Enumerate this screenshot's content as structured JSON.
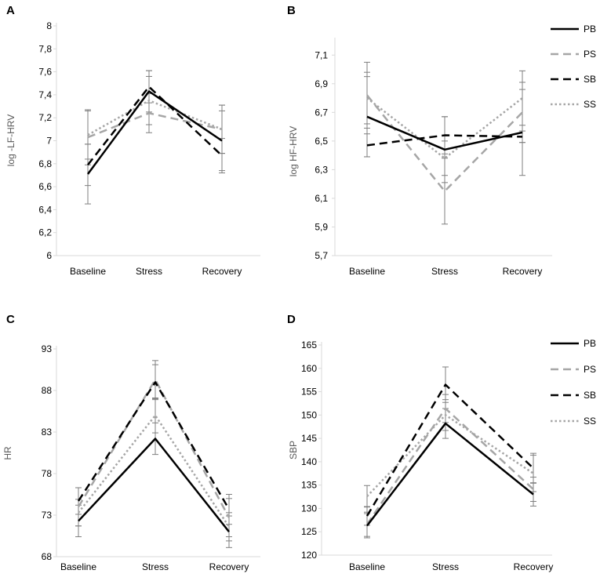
{
  "chart_data": [
    {
      "panel": "A",
      "type": "line",
      "title": "",
      "xlabel": "",
      "ylabel": "log -LF-HRV",
      "categories": [
        "Baseline",
        "Stress",
        "Recovery"
      ],
      "ylim": [
        6,
        8
      ],
      "yticks": [
        "6",
        "6,2",
        "6,4",
        "6,6",
        "6,8",
        "7",
        "7,2",
        "7,4",
        "7,6",
        "7,8",
        "8"
      ],
      "ytick_values": [
        6,
        6.2,
        6.4,
        6.6,
        6.8,
        7,
        7.2,
        7.4,
        7.6,
        7.8,
        8
      ],
      "legend": "none",
      "series": [
        {
          "name": "PB",
          "values": [
            6.71,
            7.43,
            7.0
          ],
          "errors": [
            0.26,
            0.18,
            0.26
          ]
        },
        {
          "name": "PS",
          "values": [
            7.03,
            7.24,
            7.1
          ],
          "errors": [
            0.24,
            0.17,
            0.21
          ]
        },
        {
          "name": "SB",
          "values": [
            6.79,
            7.47,
            6.87
          ],
          "errors": [
            0.18,
            0.14,
            0.15
          ]
        },
        {
          "name": "SS",
          "values": [
            7.05,
            7.35,
            7.1
          ],
          "errors": [
            0.21,
            0.21,
            0.21
          ]
        }
      ]
    },
    {
      "panel": "B",
      "type": "line",
      "title": "",
      "xlabel": "",
      "ylabel": "log HF-HRV",
      "categories": [
        "Baseline",
        "Stress",
        "Recovery"
      ],
      "ylim": [
        5.7,
        7.2
      ],
      "yticks": [
        "5,7",
        "5,9",
        "6,1",
        "6,3",
        "6,5",
        "6,7",
        "6,9",
        "7,1"
      ],
      "ytick_values": [
        5.7,
        5.9,
        6.1,
        6.3,
        6.5,
        6.7,
        6.9,
        7.1
      ],
      "legend": "top-right",
      "series": [
        {
          "name": "PB",
          "values": [
            6.67,
            6.44,
            6.56
          ],
          "errors": [
            0.28,
            0.23,
            0.3
          ]
        },
        {
          "name": "PS",
          "values": [
            6.82,
            6.15,
            6.7
          ],
          "errors": [
            0.23,
            0.23,
            0.21
          ]
        },
        {
          "name": "SB",
          "values": [
            6.47,
            6.54,
            6.53
          ],
          "errors": [
            0.08,
            0.13,
            0.04
          ]
        },
        {
          "name": "SS",
          "values": [
            6.8,
            6.38,
            6.8
          ],
          "errors": [
            0.18,
            0.12,
            0.19
          ]
        }
      ]
    },
    {
      "panel": "C",
      "type": "line",
      "title": "",
      "xlabel": "",
      "ylabel": "HR",
      "categories": [
        "Baseline",
        "Stress",
        "Recovery"
      ],
      "ylim": [
        68,
        93
      ],
      "yticks": [
        "68",
        "73",
        "78",
        "83",
        "88",
        "93"
      ],
      "ytick_values": [
        68,
        73,
        78,
        83,
        88,
        93
      ],
      "legend": "none",
      "series": [
        {
          "name": "PB",
          "values": [
            72.3,
            82.2,
            71.0
          ],
          "errors": [
            1.9,
            1.9,
            1.9
          ]
        },
        {
          "name": "PS",
          "values": [
            74.0,
            89.3,
            72.7
          ],
          "errors": [
            2.3,
            2.3,
            2.3
          ]
        },
        {
          "name": "SB",
          "values": [
            74.7,
            89.0,
            73.7
          ],
          "errors": [
            1.6,
            2.1,
            1.8
          ]
        },
        {
          "name": "SS",
          "values": [
            73.3,
            85.0,
            71.6
          ],
          "errors": [
            1.6,
            2.1,
            1.7
          ]
        }
      ]
    },
    {
      "panel": "D",
      "type": "line",
      "title": "",
      "xlabel": "",
      "ylabel": "SBP",
      "categories": [
        "Baseline",
        "Stress",
        "Recovery"
      ],
      "ylim": [
        120,
        165
      ],
      "yticks": [
        "120",
        "125",
        "130",
        "135",
        "140",
        "145",
        "150",
        "155",
        "160",
        "165"
      ],
      "ytick_values": [
        120,
        125,
        130,
        135,
        140,
        145,
        150,
        155,
        160,
        165
      ],
      "legend": "top-right",
      "series": [
        {
          "name": "PB",
          "values": [
            126.3,
            148.2,
            133.0
          ],
          "errors": [
            2.6,
            3.2,
            2.5
          ]
        },
        {
          "name": "PS",
          "values": [
            126.6,
            151.4,
            134.1
          ],
          "errors": [
            2.6,
            3.0,
            2.6
          ]
        },
        {
          "name": "SB",
          "values": [
            128.4,
            156.5,
            138.6
          ],
          "errors": [
            2.0,
            3.8,
            3.2
          ]
        },
        {
          "name": "SS",
          "values": [
            132.6,
            150.0,
            137.5
          ],
          "errors": [
            2.3,
            3.3,
            3.9
          ]
        }
      ]
    }
  ],
  "series_styles": {
    "PB": {
      "color": "#000000",
      "dash": "",
      "width": 2.5
    },
    "PS": {
      "color": "#a6a6a6",
      "dash": "10 6",
      "width": 2.5
    },
    "SB": {
      "color": "#000000",
      "dash": "10 6",
      "width": 2.5
    },
    "SS": {
      "color": "#a6a6a6",
      "dash": "2.5 3",
      "width": 2.5
    }
  },
  "colors": {
    "axis": "#d9d9d9",
    "tick_text": "#595959",
    "error_bar": "#7f7f7f",
    "panel_label": "#000000"
  }
}
